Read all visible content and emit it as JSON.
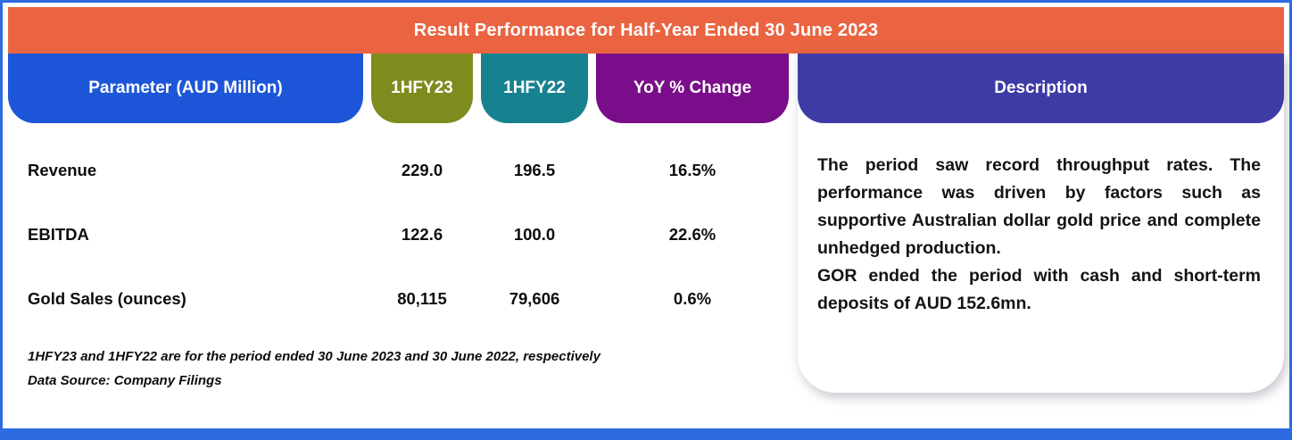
{
  "title": "Result Performance for Half-Year Ended 30 June 2023",
  "columns": {
    "parameter": "Parameter (AUD Million)",
    "hfy23": "1HFY23",
    "hfy22": "1HFY22",
    "yoy": "YoY % Change",
    "description": "Description"
  },
  "rows": [
    {
      "parameter": "Revenue",
      "hfy23": "229.0",
      "hfy22": "196.5",
      "yoy": "16.5%"
    },
    {
      "parameter": "EBITDA",
      "hfy23": "122.6",
      "hfy22": "100.0",
      "yoy": "22.6%"
    },
    {
      "parameter": "Gold Sales (ounces)",
      "hfy23": "80,115",
      "hfy22": "79,606",
      "yoy": "0.6%"
    }
  ],
  "description": {
    "paragraphs": [
      "The period saw record throughput rates. The performance was driven by factors such as supportive Australian dollar gold price and complete unhedged production.",
      "GOR ended the period with cash and short-term deposits of AUD 152.6mn."
    ]
  },
  "footnotes": [
    "1HFY23 and 1HFY22 are for the period ended 30 June 2023 and 30 June 2022, respectively",
    "Data Source: Company Filings"
  ],
  "colors": {
    "title_bg": "#EA6441",
    "parameter_bg": "#1D56D8",
    "hfy23_bg": "#7E8B1E",
    "hfy22_bg": "#17828F",
    "yoy_bg": "#7A0D89",
    "description_bg": "#3D3CA6",
    "frame_border": "#2E6BE0",
    "header_text": "#FFFFFF",
    "body_text": "#0D0D0D"
  },
  "chart_data": {
    "type": "table",
    "title": "Result Performance for Half-Year Ended 30 June 2023",
    "columns": [
      "Parameter (AUD Million)",
      "1HFY23",
      "1HFY22",
      "YoY % Change"
    ],
    "rows": [
      [
        "Revenue",
        "229.0",
        "196.5",
        "16.5%"
      ],
      [
        "EBITDA",
        "122.6",
        "100.0",
        "22.6%"
      ],
      [
        "Gold Sales (ounces)",
        "80,115",
        "79,606",
        "0.6%"
      ]
    ],
    "notes": [
      "1HFY23 and 1HFY22 are for the period ended 30 June 2023 and 30 June 2022, respectively",
      "Data Source: Company Filings"
    ]
  }
}
